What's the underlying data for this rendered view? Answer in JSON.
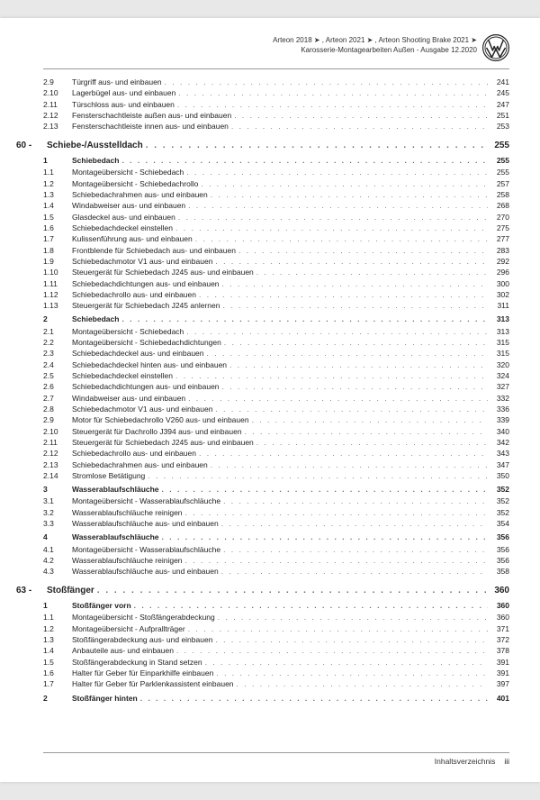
{
  "header": {
    "line1": "Arteon 2018 ➤ , Arteon 2021 ➤ , Arteon Shooting Brake 2021 ➤",
    "line2": "Karosserie-Montagearbeiten Außen - Ausgabe 12.2020"
  },
  "footer": {
    "label": "Inhaltsverzeichnis",
    "page": "iii"
  },
  "toc": [
    {
      "lvl": "sub",
      "num": "2.9",
      "title": "Türgriff aus- und einbauen",
      "page": "241"
    },
    {
      "lvl": "sub",
      "num": "2.10",
      "title": "Lagerbügel aus- und einbauen",
      "page": "245"
    },
    {
      "lvl": "sub",
      "num": "2.11",
      "title": "Türschloss aus- und einbauen",
      "page": "247"
    },
    {
      "lvl": "sub",
      "num": "2.12",
      "title": "Fensterschachtleiste außen aus- und einbauen",
      "page": "251"
    },
    {
      "lvl": "sub",
      "num": "2.13",
      "title": "Fensterschachtleiste innen aus- und einbauen",
      "page": "253"
    },
    {
      "lvl": "chapter",
      "num": "60 -",
      "title": "Schiebe-/Ausstelldach",
      "page": "255"
    },
    {
      "lvl": "section",
      "num": "1",
      "title": "Schiebedach",
      "page": "255"
    },
    {
      "lvl": "sub",
      "num": "1.1",
      "title": "Montageübersicht - Schiebedach",
      "page": "255"
    },
    {
      "lvl": "sub",
      "num": "1.2",
      "title": "Montageübersicht - Schiebedachrollo",
      "page": "257"
    },
    {
      "lvl": "sub",
      "num": "1.3",
      "title": "Schiebedachrahmen aus- und einbauen",
      "page": "258"
    },
    {
      "lvl": "sub",
      "num": "1.4",
      "title": "Windabweiser aus- und einbauen",
      "page": "268"
    },
    {
      "lvl": "sub",
      "num": "1.5",
      "title": "Glasdeckel aus- und einbauen",
      "page": "270"
    },
    {
      "lvl": "sub",
      "num": "1.6",
      "title": "Schiebedachdeckel einstellen",
      "page": "275"
    },
    {
      "lvl": "sub",
      "num": "1.7",
      "title": "Kulissenführung aus- und einbauen",
      "page": "277"
    },
    {
      "lvl": "sub",
      "num": "1.8",
      "title": "Frontblende für Schiebedach aus- und einbauen",
      "page": "283"
    },
    {
      "lvl": "sub",
      "num": "1.9",
      "title": "Schiebedachmotor V1 aus- und einbauen",
      "page": "292"
    },
    {
      "lvl": "sub",
      "num": "1.10",
      "title": "Steuergerät für Schiebedach J245 aus- und einbauen",
      "page": "296"
    },
    {
      "lvl": "sub",
      "num": "1.11",
      "title": "Schiebedachdichtungen aus- und einbauen",
      "page": "300"
    },
    {
      "lvl": "sub",
      "num": "1.12",
      "title": "Schiebedachrollo aus- und einbauen",
      "page": "302"
    },
    {
      "lvl": "sub",
      "num": "1.13",
      "title": "Steuergerät für Schiebedach J245 anlernen",
      "page": "311"
    },
    {
      "lvl": "section",
      "num": "2",
      "title": "Schiebedach",
      "page": "313"
    },
    {
      "lvl": "sub",
      "num": "2.1",
      "title": "Montageübersicht - Schiebedach",
      "page": "313"
    },
    {
      "lvl": "sub",
      "num": "2.2",
      "title": "Montageübersicht - Schiebedachdichtungen",
      "page": "315"
    },
    {
      "lvl": "sub",
      "num": "2.3",
      "title": "Schiebedachdeckel aus- und einbauen",
      "page": "315"
    },
    {
      "lvl": "sub",
      "num": "2.4",
      "title": "Schiebedachdeckel hinten aus- und einbauen",
      "page": "320"
    },
    {
      "lvl": "sub",
      "num": "2.5",
      "title": "Schiebedachdeckel einstellen",
      "page": "324"
    },
    {
      "lvl": "sub",
      "num": "2.6",
      "title": "Schiebedachdichtungen aus- und einbauen",
      "page": "327"
    },
    {
      "lvl": "sub",
      "num": "2.7",
      "title": "Windabweiser aus- und einbauen",
      "page": "332"
    },
    {
      "lvl": "sub",
      "num": "2.8",
      "title": "Schiebedachmotor V1 aus- und einbauen",
      "page": "336"
    },
    {
      "lvl": "sub",
      "num": "2.9",
      "title": "Motor für Schiebedachrollo V260 aus- und einbauen",
      "page": "339"
    },
    {
      "lvl": "sub",
      "num": "2.10",
      "title": "Steuergerät für Dachrollo J394 aus- und einbauen",
      "page": "340"
    },
    {
      "lvl": "sub",
      "num": "2.11",
      "title": "Steuergerät für Schiebedach J245 aus- und einbauen",
      "page": "342"
    },
    {
      "lvl": "sub",
      "num": "2.12",
      "title": "Schiebedachrollo aus- und einbauen",
      "page": "343"
    },
    {
      "lvl": "sub",
      "num": "2.13",
      "title": "Schiebedachrahmen aus- und einbauen",
      "page": "347"
    },
    {
      "lvl": "sub",
      "num": "2.14",
      "title": "Stromlose Betätigung",
      "page": "350"
    },
    {
      "lvl": "section",
      "num": "3",
      "title": "Wasserablaufschläuche",
      "page": "352"
    },
    {
      "lvl": "sub",
      "num": "3.1",
      "title": "Montageübersicht - Wasserablaufschläuche",
      "page": "352"
    },
    {
      "lvl": "sub",
      "num": "3.2",
      "title": "Wasserablaufschläuche reinigen",
      "page": "352"
    },
    {
      "lvl": "sub",
      "num": "3.3",
      "title": "Wasserablaufschläuche aus- und einbauen",
      "page": "354"
    },
    {
      "lvl": "section",
      "num": "4",
      "title": "Wasserablaufschläuche",
      "page": "356"
    },
    {
      "lvl": "sub",
      "num": "4.1",
      "title": "Montageübersicht - Wasserablaufschläuche",
      "page": "356"
    },
    {
      "lvl": "sub",
      "num": "4.2",
      "title": "Wasserablaufschläuche reinigen",
      "page": "356"
    },
    {
      "lvl": "sub",
      "num": "4.3",
      "title": "Wasserablaufschläuche aus- und einbauen",
      "page": "358"
    },
    {
      "lvl": "chapter",
      "num": "63 -",
      "title": "Stoßfänger",
      "page": "360"
    },
    {
      "lvl": "section",
      "num": "1",
      "title": "Stoßfänger vorn",
      "page": "360"
    },
    {
      "lvl": "sub",
      "num": "1.1",
      "title": "Montageübersicht - Stoßfängerabdeckung",
      "page": "360"
    },
    {
      "lvl": "sub",
      "num": "1.2",
      "title": "Montageübersicht - Aufprallträger",
      "page": "371"
    },
    {
      "lvl": "sub",
      "num": "1.3",
      "title": "Stoßfängerabdeckung aus- und einbauen",
      "page": "372"
    },
    {
      "lvl": "sub",
      "num": "1.4",
      "title": "Anbauteile aus- und einbauen",
      "page": "378"
    },
    {
      "lvl": "sub",
      "num": "1.5",
      "title": "Stoßfängerabdeckung in Stand setzen",
      "page": "391"
    },
    {
      "lvl": "sub",
      "num": "1.6",
      "title": "Halter für Geber für Einparkhilfe einbauen",
      "page": "391"
    },
    {
      "lvl": "sub",
      "num": "1.7",
      "title": "Halter für Geber für Parklenkassistent einbauen",
      "page": "397"
    },
    {
      "lvl": "section",
      "num": "2",
      "title": "Stoßfänger hinten",
      "page": "401"
    }
  ]
}
